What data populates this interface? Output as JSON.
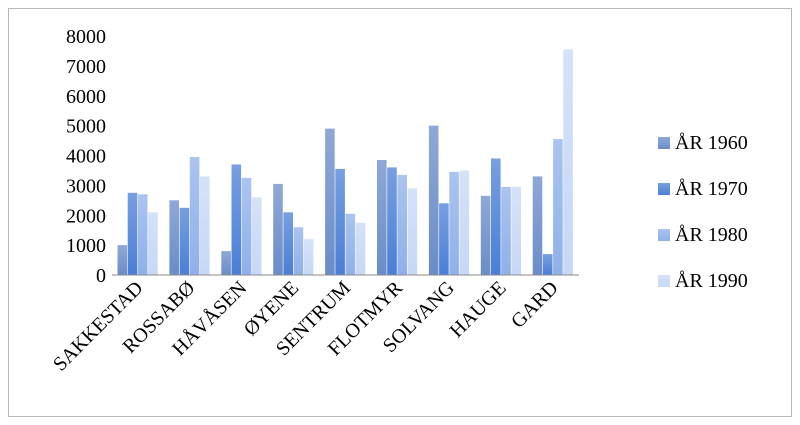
{
  "chart_data": {
    "type": "bar",
    "title": "",
    "xlabel": "",
    "ylabel": "",
    "ylim": [
      0,
      8000
    ],
    "yticks": [
      0,
      1000,
      2000,
      3000,
      4000,
      5000,
      6000,
      7000,
      8000
    ],
    "grid": false,
    "legend_position": "right",
    "categories": [
      "SAKKESTAD",
      "ROSSABØ",
      "HÅVÅSEN",
      "ØYENE",
      "SENTRUM",
      "FLOTMYR",
      "SOLVANG",
      "HAUGE",
      "GARD"
    ],
    "series": [
      {
        "name": "ÅR 1960",
        "color": "#6a8cc8",
        "values": [
          1000,
          2500,
          800,
          3050,
          4900,
          3850,
          5000,
          2650,
          3300
        ]
      },
      {
        "name": "ÅR 1970",
        "color": "#4a7fd6",
        "values": [
          2750,
          2250,
          3700,
          2100,
          3550,
          3600,
          2400,
          3900,
          700
        ]
      },
      {
        "name": "ÅR 1980",
        "color": "#8fb0ea",
        "values": [
          2700,
          3950,
          3250,
          1600,
          2050,
          3350,
          3450,
          2950,
          4550
        ]
      },
      {
        "name": "ÅR 1990",
        "color": "#c6d8f6",
        "values": [
          2100,
          3300,
          2600,
          1200,
          1750,
          2900,
          3500,
          2950,
          7550
        ]
      }
    ]
  }
}
